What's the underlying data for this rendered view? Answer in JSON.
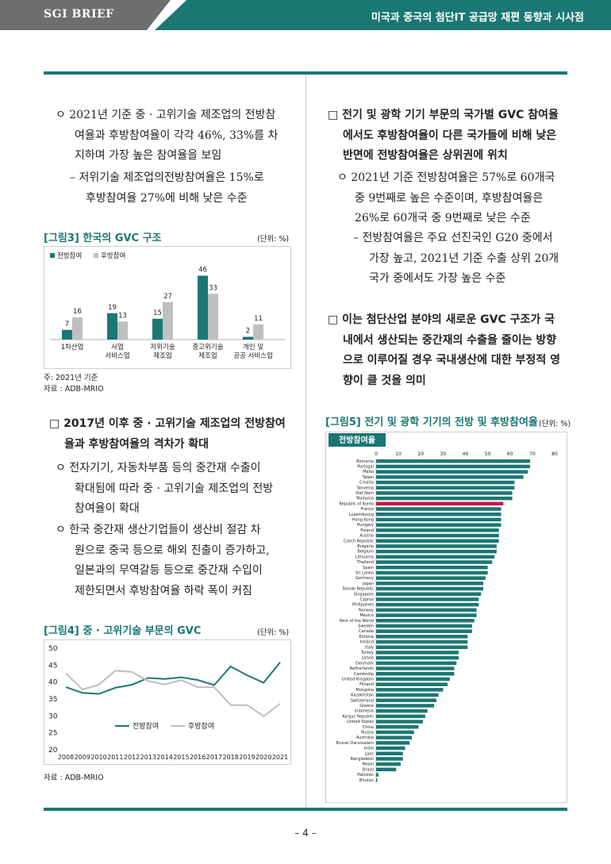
{
  "header": {
    "left": "SGI BRIEF",
    "right": "미국과 중국의 첨단IT 공급망 재편 동향과 시사점"
  },
  "left": {
    "bullet1": [
      "ㅇ 2021년 기준 중 · 고위기술 제조업의 전방참",
      "여율과 후방참여율이 각각 46%, 33%를 차",
      "지하며 가장 높은 참여율을 보임"
    ],
    "sub1": [
      "– 저위기술 제조업의전방참여율은 15%로",
      "후방참여율 27%에 비해 낮은 수준"
    ],
    "heading2": [
      "□ 2017년 이후 중 · 고위기술 제조업의 전방참여",
      "율과 후방참여율의 격차가 확대"
    ],
    "bullet2": [
      "ㅇ 전자기기, 자동차부품 등의 중간재 수출이",
      "확대됨에 따라 중 · 고위기술 제조업의 전방",
      "참여율이 확대"
    ],
    "bullet3": [
      "ㅇ 한국 중간재 생산기업들이 생산비 절감 차",
      "원으로 중국 등으로 해외 진출이 증가하고,",
      "일본과의 무역갈등 등으로 중간재 수입이",
      "제한되면서 후방참여율 하락 폭이 커짐"
    ]
  },
  "right": {
    "heading1": [
      "□ 전기 및 광학 기기 부문의 국가별 GVC 참여율",
      "에서도 후방참여율이 다른 국가들에 비해 낮은",
      "반면에 전방참여율은 상위권에 위치"
    ],
    "bullet1": [
      "ㅇ 2021년 기준 전방참여율은 57%로 60개국",
      "중 9번째로 높은 수준이며, 후방참여율은",
      "26%로 60개국 중 9번째로 낮은 수준"
    ],
    "sub1": [
      "– 전방참여율은 주요 선진국인 G20 중에서",
      "가장 높고, 2021년 기준 수출 상위 20개",
      "국가 중에서도 가장 높은 수준"
    ],
    "heading2": [
      "□ 이는 첨단산업 분야의 새로운 GVC 구조가 국",
      "내에서 생산되는 중간재의 수출을 줄이는 방향",
      "으로 이루어질 경우 국내생산에 대한 부정적 영",
      "향이 클 것을 의미"
    ]
  },
  "fig3": {
    "title": "[그림3] 한국의 GVC 구조",
    "unit": "(단위: %)",
    "note": "주: 2021년 기준",
    "source": "자료 : ADB-MRIO",
    "chart_data": {
      "type": "bar",
      "categories": [
        "1차산업",
        "사업 서비스업",
        "저위기술 제조업",
        "중고위기술 제조업",
        "개인 및 공공 서비스업"
      ],
      "category_lines": [
        [
          "1차산업"
        ],
        [
          "사업",
          "서비스업"
        ],
        [
          "저위기술",
          "제조업"
        ],
        [
          "중고위기술",
          "제조업"
        ],
        [
          "개인 및",
          "공공 서비스업"
        ]
      ],
      "series": [
        {
          "name": "전방참여",
          "values": [
            7,
            19,
            15,
            46,
            2
          ],
          "color": "#1b7774"
        },
        {
          "name": "후방참여",
          "values": [
            16,
            13,
            27,
            33,
            11
          ],
          "color": "#bfbfbf"
        }
      ]
    }
  },
  "fig4": {
    "title": "[그림4] 중 · 고위기술 부문의 GVC",
    "unit": "(단위: %)",
    "source": "자료 : ADB-MRIO",
    "chart_data": {
      "type": "line",
      "x": [
        "2008",
        "2009",
        "2010",
        "2011",
        "2012",
        "2013",
        "2014",
        "2015",
        "2016",
        "2017",
        "2018",
        "2019",
        "2020",
        "2021"
      ],
      "ylim": [
        20,
        50
      ],
      "yticks": [
        20,
        25,
        30,
        35,
        40,
        45,
        50
      ],
      "series": [
        {
          "name": "전방참여",
          "values": [
            38.5,
            36.8,
            36.5,
            38.3,
            39.2,
            41.2,
            40.9,
            41.4,
            40.6,
            39.1,
            44.6,
            42.0,
            39.8,
            45.8
          ],
          "color": "#1b7774"
        },
        {
          "name": "후방참여",
          "values": [
            42.6,
            37.8,
            39.2,
            43.4,
            43.0,
            40.3,
            39.3,
            40.6,
            38.5,
            38.5,
            33.2,
            33.2,
            29.9,
            33.6
          ],
          "color": "#bfbfbf"
        }
      ]
    }
  },
  "fig5": {
    "title": "[그림5] 전기 및 광학 기기의 전방 및 후방참여율",
    "unit": "(단위: %)",
    "panel_label": "전방참여율",
    "chart_data": {
      "type": "bar",
      "orientation": "horizontal",
      "series_name": "전방참여율",
      "xlim": [
        0,
        80
      ],
      "xticks": [
        0,
        10,
        20,
        30,
        40,
        50,
        60,
        70,
        80
      ],
      "highlight": "Republic of Korea",
      "bar_color": "#1b7774",
      "highlight_color": "#c4164d",
      "categories": [
        "Romania",
        "Portugal",
        "Malta",
        "Taipei",
        "Croatia",
        "Slovenia",
        "Viet Nam",
        "Malaysia",
        "Republic of Korea",
        "France",
        "Luxembourg",
        "Hong Kong",
        "Hungary",
        "Poland",
        "Austria",
        "Czech Republic",
        "Bulgaria",
        "Belgium",
        "Lithuania",
        "Thailand",
        "Spain",
        "Sri Lanka",
        "Germany",
        "Japan",
        "Slovak Republic",
        "Singapore",
        "Cyprus",
        "Philippines",
        "Norway",
        "Mexico",
        "Rest of the World",
        "Sweden",
        "Canada",
        "Estonia",
        "Ireland",
        "Italy",
        "Turkey",
        "Latvia",
        "Denmark",
        "Netherlands",
        "Cambodia",
        "United Kingdom",
        "Finland",
        "Mongolia",
        "Kazakhstan",
        "Switzerland",
        "Greece",
        "Indonesia",
        "Kyrgyz Republic",
        "United States",
        "China",
        "Russia",
        "Australia",
        "Brunei Darussalam",
        "India",
        "Laos",
        "Bangladesh",
        "Nepal",
        "Brazil",
        "Pakistan",
        "Bhutan"
      ],
      "values": [
        69,
        69,
        68,
        66,
        62,
        62,
        61,
        61,
        57,
        56,
        56,
        56,
        56,
        55,
        55,
        55,
        54,
        54,
        53,
        52,
        50,
        50,
        49,
        48,
        48,
        47,
        46,
        46,
        45,
        45,
        44,
        43,
        43,
        41,
        41,
        41,
        37,
        37,
        36,
        35,
        35,
        33,
        32,
        30,
        28,
        27,
        26,
        23,
        22,
        21,
        19,
        17,
        16,
        15,
        13,
        12,
        12,
        11,
        9,
        1,
        0.5
      ]
    }
  },
  "page_number": "– 4 –"
}
